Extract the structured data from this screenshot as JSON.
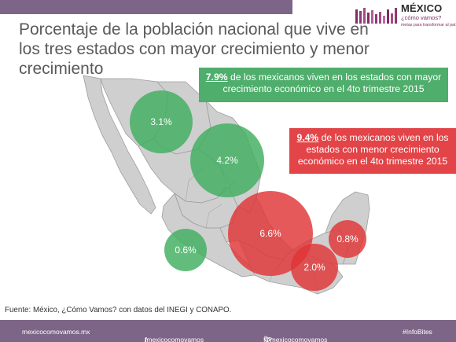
{
  "title": "Porcentaje de la población nacional que vive en los tres estados con mayor crecimiento y menor crecimiento",
  "logo": {
    "name": "MÉXICO",
    "sub": "¿cómo vamos?",
    "tagline": "metas para transformar al país"
  },
  "callouts": {
    "high": {
      "pct": "7.9%",
      "text": " de los mexicanos viven en los estados con mayor crecimiento económico en el 4to trimestre 2015"
    },
    "low": {
      "pct": "9.4%",
      "text": " de los mexicanos viven en los estados con menor crecimiento económico en el 4to trimestre 2015"
    }
  },
  "bubbles": [
    {
      "label": "3.1%",
      "group": "high"
    },
    {
      "label": "4.2%",
      "group": "high"
    },
    {
      "label": "0.6%",
      "group": "high"
    },
    {
      "label": "6.6%",
      "group": "low"
    },
    {
      "label": "2.0%",
      "group": "low"
    },
    {
      "label": "0.8%",
      "group": "low"
    }
  ],
  "colors": {
    "high": "#3fae5f",
    "low": "#e03436",
    "bar": "#7d6587",
    "map_fill": "#cfcfcf",
    "map_stroke": "#9e9e9e"
  },
  "source": "Fuente: México, ¿Cómo Vamos? con datos del INEGI y CONAPO.",
  "footer": {
    "site": "mexicocomovamos.mx",
    "facebook": "/mexicocomovamos",
    "twitter": "@mexicocomovamos",
    "hashtag": "#InfoBites"
  },
  "icons": {
    "facebook": "facebook-icon",
    "twitter": "twitter-icon"
  }
}
